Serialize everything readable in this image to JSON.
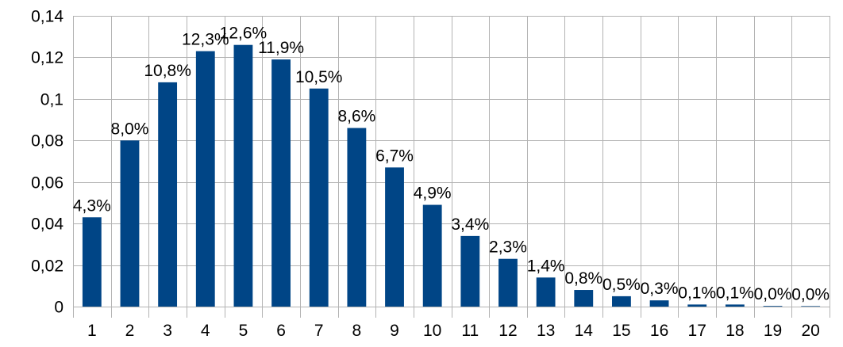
{
  "chart_data": {
    "type": "bar",
    "categories": [
      "1",
      "2",
      "3",
      "4",
      "5",
      "6",
      "7",
      "8",
      "9",
      "10",
      "11",
      "12",
      "13",
      "14",
      "15",
      "16",
      "17",
      "18",
      "19",
      "20"
    ],
    "values": [
      0.043,
      0.08,
      0.108,
      0.123,
      0.126,
      0.119,
      0.105,
      0.086,
      0.067,
      0.049,
      0.034,
      0.023,
      0.014,
      0.008,
      0.005,
      0.003,
      0.001,
      0.001,
      0.0003,
      0.0001
    ],
    "data_labels": [
      "4,3%",
      "8,0%",
      "10,8%",
      "12,3%",
      "12,6%",
      "11,9%",
      "10,5%",
      "8,6%",
      "6,7%",
      "4,9%",
      "3,4%",
      "2,3%",
      "1,4%",
      "0,8%",
      "0,5%",
      "0,3%",
      "0,1%",
      "0,1%",
      "0,0%",
      "0,0%"
    ],
    "y_ticks": [
      0,
      0.02,
      0.04,
      0.06,
      0.08,
      0.1,
      0.12,
      0.14
    ],
    "y_tick_labels": [
      "0",
      "0,02",
      "0,04",
      "0,06",
      "0,08",
      "0,1",
      "0,12",
      "0,14"
    ],
    "ylim": [
      0,
      0.14
    ],
    "title": "",
    "xlabel": "",
    "ylabel": "",
    "grid": true,
    "legend": "none",
    "bar_color": "#004586"
  }
}
